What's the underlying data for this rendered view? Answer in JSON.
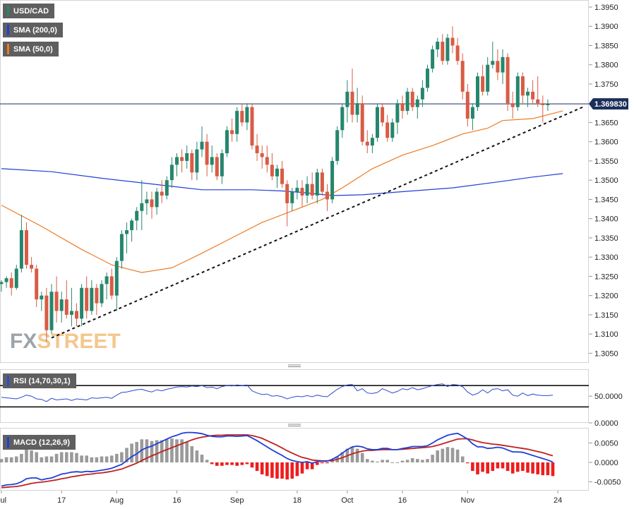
{
  "legend": {
    "symbol": "USD/CAD",
    "sma200": "SMA (200,0)",
    "sma50": "SMA (50,0)",
    "rsi": "RSI (14,70,30,1)",
    "macd": "MACD (12,26,9)"
  },
  "watermark": {
    "fx": "FX",
    "street": "STREET"
  },
  "colors": {
    "up": "#26866d",
    "down": "#d85c45",
    "sma200": "#1e3fd6",
    "sma50": "#ee7a22",
    "rsi": "#2e49d1",
    "macd_line": "#1e3fd6",
    "signal_line": "#c0201e",
    "hist_pos": "#9a9a9a",
    "hist_neg": "#ee1d1d",
    "price_tag": "#1c2f5a",
    "current_line": "#1c2f5a"
  },
  "chart_data": [
    {
      "type": "candlestick",
      "title": "USD/CAD",
      "current_price_label": "1.369830",
      "current_price": 1.36983,
      "ylim": [
        1.3005,
        1.3985
      ],
      "y_ticks": [
        "1.3950",
        "1.3900",
        "1.3850",
        "1.3800",
        "1.3750",
        "1.3700",
        "1.3650",
        "1.3600",
        "1.3550",
        "1.3500",
        "1.3450",
        "1.3400",
        "1.3350",
        "1.3300",
        "1.3250",
        "1.3200",
        "1.3150",
        "1.3100",
        "1.3050"
      ],
      "x_labels": [
        {
          "label": "Jul",
          "index": 0
        },
        {
          "label": "17",
          "index": 12
        },
        {
          "label": "Aug",
          "index": 23
        },
        {
          "label": "16",
          "index": 35
        },
        {
          "label": "Sep",
          "index": 47
        },
        {
          "label": "18",
          "index": 59
        },
        {
          "label": "Oct",
          "index": 69
        },
        {
          "label": "16",
          "index": 80
        },
        {
          "label": "Nov",
          "index": 93
        },
        {
          "label": "24",
          "index": 111
        }
      ],
      "candles": [
        [
          1.323,
          1.324,
          1.321,
          1.3235
        ],
        [
          1.3235,
          1.325,
          1.322,
          1.3245
        ],
        [
          1.3245,
          1.326,
          1.32,
          1.322
        ],
        [
          1.322,
          1.328,
          1.3215,
          1.327
        ],
        [
          1.327,
          1.341,
          1.326,
          1.337
        ],
        [
          1.337,
          1.339,
          1.327,
          1.328
        ],
        [
          1.328,
          1.33,
          1.326,
          1.327
        ],
        [
          1.327,
          1.328,
          1.317,
          1.319
        ],
        [
          1.319,
          1.321,
          1.316,
          1.32
        ],
        [
          1.32,
          1.322,
          1.308,
          1.311
        ],
        [
          1.311,
          1.323,
          1.31,
          1.321
        ],
        [
          1.321,
          1.325,
          1.313,
          1.316
        ],
        [
          1.316,
          1.321,
          1.313,
          1.319
        ],
        [
          1.319,
          1.324,
          1.314,
          1.315
        ],
        [
          1.315,
          1.322,
          1.312,
          1.316
        ],
        [
          1.316,
          1.318,
          1.312,
          1.314
        ],
        [
          1.314,
          1.323,
          1.312,
          1.322
        ],
        [
          1.322,
          1.325,
          1.314,
          1.316
        ],
        [
          1.316,
          1.324,
          1.315,
          1.322
        ],
        [
          1.322,
          1.323,
          1.315,
          1.318
        ],
        [
          1.318,
          1.324,
          1.317,
          1.323
        ],
        [
          1.323,
          1.326,
          1.319,
          1.325
        ],
        [
          1.325,
          1.327,
          1.319,
          1.32
        ],
        [
          1.32,
          1.33,
          1.316,
          1.329
        ],
        [
          1.329,
          1.337,
          1.327,
          1.336
        ],
        [
          1.336,
          1.339,
          1.331,
          1.337
        ],
        [
          1.337,
          1.34,
          1.334,
          1.3395
        ],
        [
          1.3395,
          1.343,
          1.337,
          1.342
        ],
        [
          1.342,
          1.35,
          1.337,
          1.344
        ],
        [
          1.344,
          1.347,
          1.341,
          1.345
        ],
        [
          1.345,
          1.347,
          1.34,
          1.343
        ],
        [
          1.343,
          1.348,
          1.341,
          1.347
        ],
        [
          1.347,
          1.35,
          1.344,
          1.346
        ],
        [
          1.346,
          1.351,
          1.345,
          1.35
        ],
        [
          1.35,
          1.356,
          1.348,
          1.354
        ],
        [
          1.354,
          1.357,
          1.351,
          1.356
        ],
        [
          1.356,
          1.358,
          1.352,
          1.355
        ],
        [
          1.355,
          1.359,
          1.353,
          1.357
        ],
        [
          1.357,
          1.358,
          1.35,
          1.352
        ],
        [
          1.352,
          1.36,
          1.35,
          1.358
        ],
        [
          1.358,
          1.364,
          1.356,
          1.36
        ],
        [
          1.36,
          1.362,
          1.351,
          1.354
        ],
        [
          1.354,
          1.359,
          1.352,
          1.356
        ],
        [
          1.356,
          1.357,
          1.35,
          1.351
        ],
        [
          1.351,
          1.358,
          1.349,
          1.357
        ],
        [
          1.357,
          1.364,
          1.356,
          1.363
        ],
        [
          1.363,
          1.366,
          1.36,
          1.362
        ],
        [
          1.362,
          1.369,
          1.36,
          1.368
        ],
        [
          1.368,
          1.37,
          1.364,
          1.365
        ],
        [
          1.365,
          1.37,
          1.363,
          1.369
        ],
        [
          1.369,
          1.37,
          1.358,
          1.359
        ],
        [
          1.359,
          1.362,
          1.355,
          1.357
        ],
        [
          1.357,
          1.359,
          1.353,
          1.356
        ],
        [
          1.356,
          1.359,
          1.352,
          1.354
        ],
        [
          1.354,
          1.357,
          1.35,
          1.351
        ],
        [
          1.351,
          1.354,
          1.348,
          1.353
        ],
        [
          1.353,
          1.355,
          1.348,
          1.349
        ],
        [
          1.349,
          1.35,
          1.338,
          1.344
        ],
        [
          1.344,
          1.348,
          1.342,
          1.347
        ],
        [
          1.347,
          1.35,
          1.345,
          1.348
        ],
        [
          1.348,
          1.35,
          1.343,
          1.346
        ],
        [
          1.346,
          1.351,
          1.344,
          1.349
        ],
        [
          1.349,
          1.352,
          1.345,
          1.346
        ],
        [
          1.346,
          1.353,
          1.344,
          1.352
        ],
        [
          1.352,
          1.353,
          1.346,
          1.347
        ],
        [
          1.347,
          1.349,
          1.342,
          1.345
        ],
        [
          1.345,
          1.356,
          1.344,
          1.355
        ],
        [
          1.355,
          1.364,
          1.354,
          1.363
        ],
        [
          1.363,
          1.37,
          1.361,
          1.369
        ],
        [
          1.369,
          1.376,
          1.365,
          1.373
        ],
        [
          1.373,
          1.379,
          1.365,
          1.367
        ],
        [
          1.367,
          1.374,
          1.365,
          1.37
        ],
        [
          1.37,
          1.372,
          1.359,
          1.36
        ],
        [
          1.36,
          1.363,
          1.357,
          1.359
        ],
        [
          1.359,
          1.362,
          1.357,
          1.361
        ],
        [
          1.361,
          1.37,
          1.36,
          1.369
        ],
        [
          1.369,
          1.37,
          1.364,
          1.365
        ],
        [
          1.365,
          1.367,
          1.36,
          1.361
        ],
        [
          1.361,
          1.366,
          1.36,
          1.365
        ],
        [
          1.365,
          1.371,
          1.362,
          1.37
        ],
        [
          1.37,
          1.372,
          1.366,
          1.368
        ],
        [
          1.368,
          1.374,
          1.367,
          1.373
        ],
        [
          1.373,
          1.374,
          1.368,
          1.369
        ],
        [
          1.369,
          1.372,
          1.366,
          1.371
        ],
        [
          1.371,
          1.376,
          1.369,
          1.374
        ],
        [
          1.374,
          1.38,
          1.373,
          1.379
        ],
        [
          1.379,
          1.385,
          1.378,
          1.384
        ],
        [
          1.384,
          1.387,
          1.382,
          1.386
        ],
        [
          1.386,
          1.388,
          1.38,
          1.381
        ],
        [
          1.381,
          1.388,
          1.38,
          1.387
        ],
        [
          1.387,
          1.39,
          1.383,
          1.385
        ],
        [
          1.385,
          1.387,
          1.38,
          1.381
        ],
        [
          1.381,
          1.383,
          1.371,
          1.373
        ],
        [
          1.373,
          1.375,
          1.364,
          1.366
        ],
        [
          1.366,
          1.37,
          1.363,
          1.369
        ],
        [
          1.369,
          1.378,
          1.368,
          1.377
        ],
        [
          1.377,
          1.38,
          1.372,
          1.373
        ],
        [
          1.373,
          1.382,
          1.372,
          1.38
        ],
        [
          1.38,
          1.386,
          1.379,
          1.381
        ],
        [
          1.381,
          1.384,
          1.376,
          1.378
        ],
        [
          1.378,
          1.384,
          1.375,
          1.382
        ],
        [
          1.382,
          1.383,
          1.368,
          1.37
        ],
        [
          1.37,
          1.373,
          1.366,
          1.369
        ],
        [
          1.369,
          1.378,
          1.368,
          1.377
        ],
        [
          1.377,
          1.378,
          1.37,
          1.372
        ],
        [
          1.372,
          1.374,
          1.369,
          1.373
        ],
        [
          1.373,
          1.376,
          1.37,
          1.371
        ],
        [
          1.371,
          1.377,
          1.369,
          1.37
        ],
        [
          1.37,
          1.372,
          1.365,
          1.3695
        ],
        [
          1.3695,
          1.371,
          1.368,
          1.3698
        ]
      ],
      "sma200": [
        [
          0,
          1.353
        ],
        [
          10,
          1.3522
        ],
        [
          20,
          1.3505
        ],
        [
          30,
          1.349
        ],
        [
          40,
          1.3475
        ],
        [
          50,
          1.3475
        ],
        [
          56,
          1.3472
        ],
        [
          60,
          1.3468
        ],
        [
          66,
          1.346
        ],
        [
          72,
          1.3462
        ],
        [
          80,
          1.347
        ],
        [
          90,
          1.348
        ],
        [
          100,
          1.3497
        ],
        [
          106,
          1.3508
        ],
        [
          112,
          1.3517
        ]
      ],
      "sma50": [
        [
          0,
          1.3435
        ],
        [
          8,
          1.338
        ],
        [
          16,
          1.332
        ],
        [
          22,
          1.328
        ],
        [
          28,
          1.326
        ],
        [
          34,
          1.3272
        ],
        [
          40,
          1.331
        ],
        [
          46,
          1.335
        ],
        [
          52,
          1.339
        ],
        [
          58,
          1.342
        ],
        [
          64,
          1.345
        ],
        [
          68,
          1.348
        ],
        [
          74,
          1.353
        ],
        [
          80,
          1.3565
        ],
        [
          86,
          1.359
        ],
        [
          92,
          1.362
        ],
        [
          97,
          1.3635
        ],
        [
          100,
          1.3655
        ],
        [
          106,
          1.366
        ],
        [
          112,
          1.368
        ]
      ],
      "trendline": {
        "from": [
          10,
          1.309
        ],
        "to": [
          116,
          1.369
        ]
      }
    },
    {
      "type": "line",
      "title": "RSI (14,70,30,1)",
      "ylim": [
        0,
        100
      ],
      "y_ticks": [
        "50.0000",
        "0.0000"
      ],
      "levels": [
        70,
        30
      ],
      "values": [
        48,
        47,
        46,
        45,
        48,
        52,
        50,
        45,
        44,
        40,
        46,
        43,
        44,
        45,
        42,
        45,
        44,
        43,
        47,
        46,
        47,
        48,
        46,
        52,
        57,
        58,
        60,
        62,
        63,
        60,
        58,
        62,
        60,
        63,
        65,
        67,
        68,
        67,
        69,
        68,
        70,
        66,
        67,
        64,
        68,
        70,
        69,
        71,
        70,
        71,
        60,
        56,
        53,
        54,
        50,
        51,
        49,
        45,
        48,
        50,
        49,
        51,
        49,
        52,
        50,
        49,
        56,
        63,
        68,
        71,
        72,
        60,
        64,
        56,
        55,
        57,
        64,
        60,
        56,
        59,
        64,
        62,
        66,
        62,
        64,
        67,
        70,
        72,
        73,
        68,
        72,
        71,
        68,
        58,
        52,
        55,
        62,
        56,
        63,
        64,
        60,
        62,
        52,
        50,
        56,
        51,
        54,
        52,
        51,
        51,
        52
      ]
    },
    {
      "type": "line",
      "title": "MACD (12,26,9)",
      "ylim": [
        -0.0075,
        0.0085
      ],
      "y_ticks": [
        "0.0050",
        "0.0000",
        "-0.0050"
      ],
      "macd": [
        -0.0061,
        -0.0058,
        -0.0057,
        -0.0055,
        -0.005,
        -0.0042,
        -0.004,
        -0.004,
        -0.0045,
        -0.0042,
        -0.004,
        -0.0035,
        -0.003,
        -0.0028,
        -0.0025,
        -0.0024,
        -0.0025,
        -0.0023,
        -0.0024,
        -0.0022,
        -0.002,
        -0.0018,
        -0.0015,
        -0.001,
        -0.0005,
        0.0005,
        0.0015,
        0.0022,
        0.0032,
        0.0038,
        0.0042,
        0.0048,
        0.0054,
        0.006,
        0.0066,
        0.007,
        0.0075,
        0.0077,
        0.0077,
        0.0076,
        0.0074,
        0.007,
        0.0067,
        0.0066,
        0.0066,
        0.0068,
        0.0068,
        0.0067,
        0.0068,
        0.0069,
        0.0063,
        0.0056,
        0.0048,
        0.004,
        0.0032,
        0.0025,
        0.0018,
        0.001,
        0.0005,
        0.0002,
        0.0,
        0.0002,
        -0.0002,
        0.0002,
        0.0003,
        0.0003,
        0.0008,
        0.0015,
        0.0024,
        0.0033,
        0.004,
        0.0042,
        0.004,
        0.0035,
        0.0033,
        0.0033,
        0.0036,
        0.0036,
        0.0033,
        0.0033,
        0.0036,
        0.0038,
        0.0041,
        0.0041,
        0.0041,
        0.0043,
        0.005,
        0.0058,
        0.0064,
        0.007,
        0.0073,
        0.0075,
        0.0068,
        0.006,
        0.0048,
        0.004,
        0.004,
        0.0036,
        0.0037,
        0.0039,
        0.0037,
        0.0032,
        0.0027,
        0.0027,
        0.0026,
        0.0022,
        0.0018,
        0.0014,
        0.001,
        0.0006,
        0.0001
      ],
      "signal": [
        -0.0065,
        -0.0064,
        -0.0063,
        -0.0062,
        -0.006,
        -0.0057,
        -0.0054,
        -0.0052,
        -0.0051,
        -0.0049,
        -0.0047,
        -0.0045,
        -0.0042,
        -0.004,
        -0.0037,
        -0.0035,
        -0.0033,
        -0.0031,
        -0.003,
        -0.0028,
        -0.0027,
        -0.0025,
        -0.0023,
        -0.002,
        -0.0017,
        -0.0012,
        -0.0007,
        -0.0002,
        0.0005,
        0.0011,
        0.0017,
        0.0022,
        0.0028,
        0.0033,
        0.0038,
        0.0043,
        0.0048,
        0.0053,
        0.0058,
        0.0062,
        0.0065,
        0.0067,
        0.0069,
        0.007,
        0.007,
        0.0071,
        0.0071,
        0.0071,
        0.0071,
        0.0071,
        0.0069,
        0.0066,
        0.0062,
        0.0056,
        0.005,
        0.0044,
        0.0037,
        0.003,
        0.0024,
        0.0018,
        0.0013,
        0.001,
        0.0006,
        0.0005,
        0.0004,
        0.0004,
        0.0005,
        0.0008,
        0.0012,
        0.0017,
        0.0022,
        0.0026,
        0.0029,
        0.0031,
        0.0031,
        0.0032,
        0.0033,
        0.0033,
        0.0033,
        0.0033,
        0.0034,
        0.0035,
        0.0036,
        0.0037,
        0.0038,
        0.0039,
        0.0041,
        0.0044,
        0.0048,
        0.0052,
        0.0056,
        0.006,
        0.0061,
        0.0061,
        0.0058,
        0.0054,
        0.0051,
        0.0049,
        0.0047,
        0.0046,
        0.0044,
        0.0042,
        0.004,
        0.0038,
        0.0036,
        0.0034,
        0.0031,
        0.0028,
        0.0025,
        0.0021,
        0.0017
      ]
    }
  ]
}
